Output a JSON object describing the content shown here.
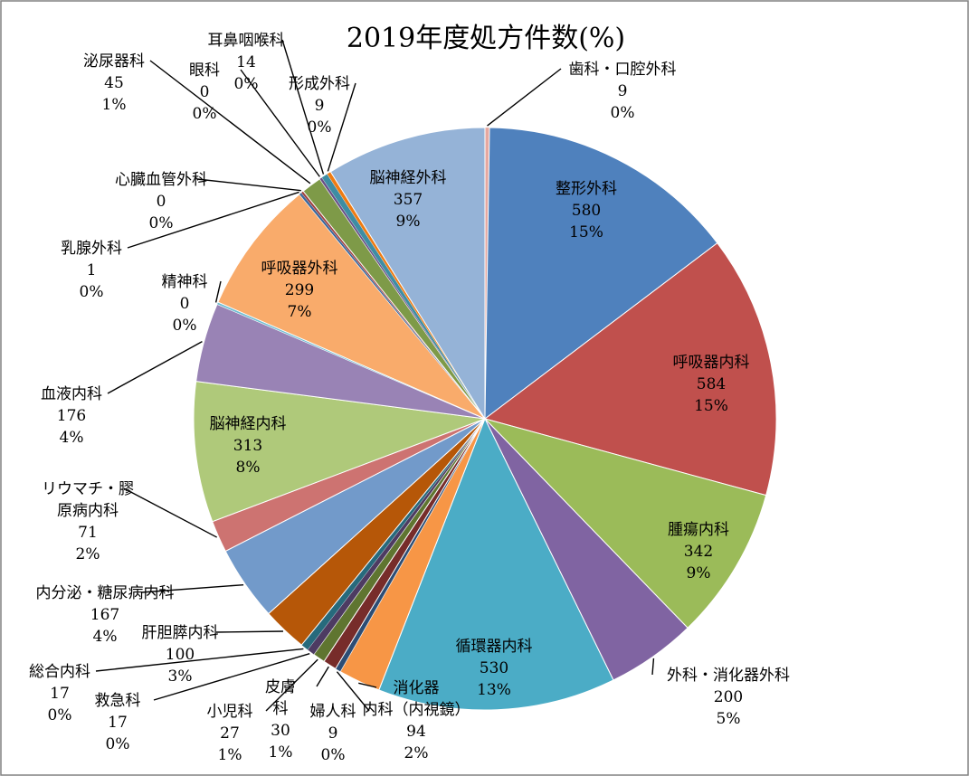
{
  "chart_data": {
    "type": "pie",
    "title": "2019年度処方件数(%)",
    "slices": [
      {
        "label": "歯科・口腔外科",
        "value": 9,
        "pct": "0%",
        "color": "#E6A8A0"
      },
      {
        "label": "整形外科",
        "value": 580,
        "pct": "15%",
        "color": "#4F81BD"
      },
      {
        "label": "呼吸器内科",
        "value": 584,
        "pct": "15%",
        "color": "#C0504D"
      },
      {
        "label": "腫瘍内科",
        "value": 342,
        "pct": "9%",
        "color": "#9BBB59"
      },
      {
        "label": "外科・消化器外科",
        "value": 200,
        "pct": "5%",
        "color": "#8064A2"
      },
      {
        "label": "循環器内科",
        "value": 530,
        "pct": "13%",
        "color": "#4BACC6"
      },
      {
        "label": "消化器内科（内視鏡）",
        "value": 94,
        "pct": "2%",
        "color": "#F79646"
      },
      {
        "label": "婦人科",
        "value": 9,
        "pct": "0%",
        "color": "#2C4D75"
      },
      {
        "label": "皮膚科",
        "value": 30,
        "pct": "1%",
        "color": "#772C2A"
      },
      {
        "label": "小児科",
        "value": 27,
        "pct": "1%",
        "color": "#5F7530"
      },
      {
        "label": "救急科",
        "value": 17,
        "pct": "0%",
        "color": "#4D3B62"
      },
      {
        "label": "総合内科",
        "value": 17,
        "pct": "0%",
        "color": "#276A7C"
      },
      {
        "label": "肝胆膵内科",
        "value": 100,
        "pct": "3%",
        "color": "#B65708"
      },
      {
        "label": "内分泌・糖尿病内科",
        "value": 167,
        "pct": "4%",
        "color": "#729ACA"
      },
      {
        "label": "リウマチ・膠原病内科",
        "value": 71,
        "pct": "2%",
        "color": "#CD7371"
      },
      {
        "label": "脳神経内科",
        "value": 313,
        "pct": "8%",
        "color": "#AFC97A"
      },
      {
        "label": "血液内科",
        "value": 176,
        "pct": "4%",
        "color": "#9983B5"
      },
      {
        "label": "精神科",
        "value": 0,
        "pct": "0%",
        "color": "#6FBDD1"
      },
      {
        "label": "呼吸器外科",
        "value": 299,
        "pct": "7%",
        "color": "#F9AB6B"
      },
      {
        "label": "乳腺外科",
        "value": 1,
        "pct": "0%",
        "color": "#3A679C"
      },
      {
        "label": "心臓血管外科",
        "value": 0,
        "pct": "0%",
        "color": "#9E413E"
      },
      {
        "label": "泌尿器科",
        "value": 45,
        "pct": "1%",
        "color": "#7E9A48"
      },
      {
        "label": "眼科",
        "value": 0,
        "pct": "0%",
        "color": "#684F86"
      },
      {
        "label": "耳鼻咽喉科",
        "value": 14,
        "pct": "0%",
        "color": "#3E8DA3"
      },
      {
        "label": "形成外科",
        "value": 9,
        "pct": "0%",
        "color": "#EE7B13"
      },
      {
        "label": "脳神経外科",
        "value": 357,
        "pct": "9%",
        "color": "#95B3D7"
      }
    ]
  }
}
